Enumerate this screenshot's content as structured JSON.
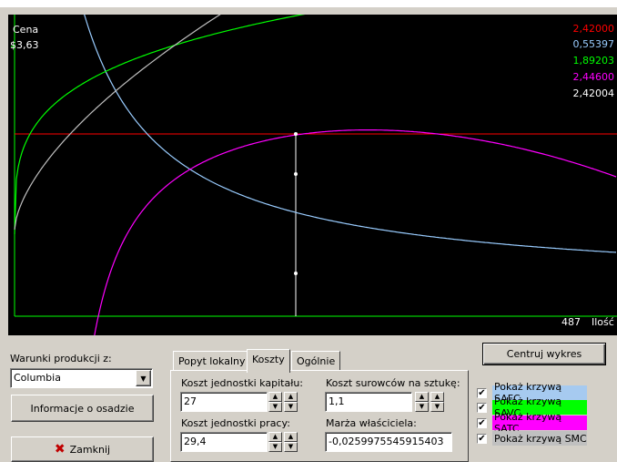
{
  "colors": {
    "safc": "#99ccff",
    "savc": "#00ff00",
    "satc": "#ff00ff",
    "smc": "#c0c0c0",
    "price": "#ff0000",
    "axis": "#00ff00"
  },
  "chart_data": {
    "type": "line",
    "ylabel": "Cena",
    "xlabel": "Ilość",
    "price_label": "$3,63",
    "x_marker_label": "487",
    "legend_values": [
      {
        "series": "price",
        "value": "2,42000",
        "color": "#ff0000"
      },
      {
        "series": "SAFC",
        "value": "0,55397",
        "color": "#99ccff"
      },
      {
        "series": "SAVC",
        "value": "1,89203",
        "color": "#00ff00"
      },
      {
        "series": "SATC",
        "value": "2,44600",
        "color": "#ff00ff"
      },
      {
        "series": "SMC",
        "value": "2,42004",
        "color": "#ffffff"
      }
    ],
    "series": [
      {
        "name": "SAFC",
        "values": []
      },
      {
        "name": "SAVC",
        "values": []
      },
      {
        "name": "SATC",
        "values": []
      },
      {
        "name": "SMC",
        "values": []
      }
    ]
  },
  "production": {
    "label": "Warunki produkcji z:",
    "selected": "Columbia",
    "info_button": "Informacje o osadzie",
    "close_button": "Zamknij"
  },
  "tabs": [
    "Popyt lokalny",
    "Koszty",
    "Ogólnie"
  ],
  "costs": {
    "capital_label": "Koszt jednostki kapitału:",
    "capital_value": "27",
    "labor_label": "Koszt jednostki pracy:",
    "labor_value": "29,4",
    "materials_label": "Koszt surowców na sztukę:",
    "materials_value": "1,1",
    "margin_label": "Marża właściciela:",
    "margin_value": "-0,0259975545915403"
  },
  "center_button": "Centruj wykres",
  "checkboxes": [
    {
      "label": "Pokaż krzywą SAFC",
      "checked": true,
      "bg": "#a6caf0"
    },
    {
      "label": "Pokaż krzywą SAVC",
      "checked": true,
      "bg": "#00ff00"
    },
    {
      "label": "Pokaż krzywą SATC",
      "checked": true,
      "bg": "#ff00ff"
    },
    {
      "label": "Pokaż krzywą SMC",
      "checked": true,
      "bg": "#c0c0c0"
    }
  ]
}
